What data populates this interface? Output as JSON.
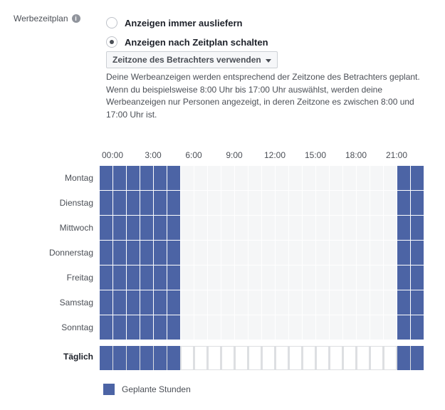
{
  "field_label": "Werbezeitplan",
  "info_icon_glyph": "i",
  "options": [
    {
      "label": "Anzeigen immer ausliefern",
      "checked": false
    },
    {
      "label": "Anzeigen nach Zeitplan schalten",
      "checked": true
    }
  ],
  "timezone_dropdown": {
    "selected": "Zeitzone des Betrachters verwenden"
  },
  "description": [
    "Deine Werbeanzeigen werden entsprechend der Zeitzone des Betrachters geplant.",
    "Wenn du beispielsweise 8:00 Uhr bis 17:00 Uhr auswählst, werden deine Werbeanzeigen nur Personen angezeigt, in deren Zeitzone es zwischen 8:00 und 17:00 Uhr ist."
  ],
  "hour_labels": [
    "00:00",
    "3:00",
    "6:00",
    "9:00",
    "12:00",
    "15:00",
    "18:00",
    "21:00"
  ],
  "days": [
    "Montag",
    "Dienstag",
    "Mittwoch",
    "Donnerstag",
    "Freitag",
    "Samstag",
    "Sonntag"
  ],
  "daily_label": "Täglich",
  "scheduled_hours": [
    0,
    1,
    2,
    3,
    4,
    5,
    22,
    23
  ],
  "legend": {
    "label": "Geplante Stunden"
  },
  "colors": {
    "scheduled": "#4c64a5",
    "unscheduled": "#f5f6f7"
  }
}
